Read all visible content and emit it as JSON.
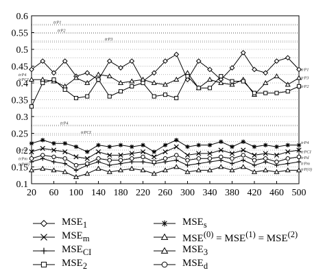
{
  "chart_data": {
    "type": "line",
    "xlim": [
      20,
      500
    ],
    "ylim": [
      0.1,
      0.6
    ],
    "x_ticks": [
      "20",
      "60",
      "100",
      "140",
      "180",
      "220",
      "260",
      "300",
      "340",
      "380",
      "420",
      "460",
      "500"
    ],
    "y_ticks": [
      "0.1",
      "0.15",
      "0.2",
      "0.25",
      "0.3",
      "0.35",
      "0.4",
      "0.45",
      "0.5",
      "0.55",
      "0.6"
    ],
    "x": [
      20,
      40,
      60,
      80,
      100,
      120,
      140,
      160,
      180,
      200,
      220,
      240,
      260,
      280,
      300,
      320,
      340,
      360,
      380,
      400,
      420,
      440,
      460,
      480,
      500
    ],
    "grid": "horizontal dotted",
    "reference_lines": [
      {
        "label": "trP1",
        "y": 0.572
      },
      {
        "label": "trP2",
        "y": 0.548
      },
      {
        "label": "trP3",
        "y": 0.522
      },
      {
        "label": "trP4",
        "y": 0.272
      },
      {
        "label": "trPCI",
        "y": 0.245
      }
    ],
    "left_labels": [
      "trP4",
      "trPCI",
      "trP4",
      "trPm",
      "trP(0)"
    ],
    "right_labels": [
      "trP1",
      "trP3",
      "trP2",
      "trP4",
      "trPCI",
      "trPd",
      "trPm",
      "trP(0)"
    ],
    "series": [
      {
        "name": "MSE1",
        "marker": "diamond",
        "values": [
          0.44,
          0.465,
          0.43,
          0.465,
          0.42,
          0.43,
          0.41,
          0.465,
          0.445,
          0.465,
          0.405,
          0.43,
          0.465,
          0.485,
          0.41,
          0.465,
          0.44,
          0.41,
          0.445,
          0.49,
          0.44,
          0.43,
          0.465,
          0.475,
          0.44
        ]
      },
      {
        "name": "MSEs",
        "marker": "asterisk",
        "values": [
          0.22,
          0.23,
          0.22,
          0.22,
          0.21,
          0.195,
          0.215,
          0.21,
          0.215,
          0.21,
          0.215,
          0.195,
          0.215,
          0.23,
          0.21,
          0.215,
          0.215,
          0.225,
          0.21,
          0.225,
          0.21,
          0.215,
          0.21,
          0.215,
          0.215
        ]
      },
      {
        "name": "MSEm",
        "marker": "cross",
        "values": [
          0.195,
          0.205,
          0.2,
          0.195,
          0.18,
          0.175,
          0.195,
          0.185,
          0.185,
          0.19,
          0.195,
          0.18,
          0.195,
          0.21,
          0.185,
          0.19,
          0.19,
          0.2,
          0.19,
          0.2,
          0.185,
          0.19,
          0.185,
          0.195,
          0.2
        ]
      },
      {
        "name": "MSE(0) = MSE(1) = MSE(2)",
        "marker": "triangle",
        "values": [
          0.41,
          0.41,
          0.405,
          0.39,
          0.415,
          0.4,
          0.425,
          0.42,
          0.4,
          0.405,
          0.41,
          0.4,
          0.395,
          0.41,
          0.43,
          0.385,
          0.41,
          0.4,
          0.395,
          0.41,
          0.365,
          0.4,
          0.42,
          0.395,
          0.415
        ]
      },
      {
        "name": "MSECI",
        "marker": "plus",
        "values": [
          0.165,
          0.175,
          0.165,
          0.16,
          0.14,
          0.155,
          0.165,
          0.155,
          0.16,
          0.165,
          0.165,
          0.16,
          0.165,
          0.17,
          0.155,
          0.16,
          0.165,
          0.17,
          0.16,
          0.17,
          0.155,
          0.165,
          0.155,
          0.16,
          0.165
        ]
      },
      {
        "name": "MSE3",
        "marker": "triangle",
        "values": [
          0.14,
          0.145,
          0.14,
          0.135,
          0.12,
          0.13,
          0.145,
          0.135,
          0.14,
          0.145,
          0.14,
          0.13,
          0.14,
          0.15,
          0.135,
          0.14,
          0.14,
          0.15,
          0.14,
          0.15,
          0.135,
          0.14,
          0.135,
          0.14,
          0.14
        ]
      },
      {
        "name": "MSE2",
        "marker": "square",
        "values": [
          0.33,
          0.4,
          0.41,
          0.38,
          0.355,
          0.36,
          0.41,
          0.36,
          0.375,
          0.39,
          0.4,
          0.36,
          0.365,
          0.355,
          0.42,
          0.385,
          0.385,
          0.42,
          0.405,
          0.405,
          0.37,
          0.37,
          0.37,
          0.375,
          0.39
        ]
      },
      {
        "name": "MSEd",
        "marker": "circle",
        "values": [
          0.175,
          0.185,
          0.18,
          0.175,
          0.155,
          0.16,
          0.175,
          0.17,
          0.17,
          0.175,
          0.18,
          0.165,
          0.175,
          0.185,
          0.17,
          0.175,
          0.175,
          0.18,
          0.175,
          0.185,
          0.17,
          0.175,
          0.165,
          0.175,
          0.18
        ]
      }
    ]
  },
  "legend": {
    "items": [
      {
        "id": "mse1",
        "marker": "diamond",
        "main": "MSE",
        "sub": "1",
        "sup": ""
      },
      {
        "id": "mses",
        "marker": "asterisk",
        "main": "MSE",
        "sub": "s",
        "sup": ""
      },
      {
        "id": "msem",
        "marker": "cross",
        "main": "MSE",
        "sub": "m",
        "sup": ""
      },
      {
        "id": "mse012",
        "marker": "triangle",
        "main": "MSE",
        "sub": "",
        "sup": "(0)",
        "rest": " = MSE",
        "sup2": "(1)",
        "rest2": " = MSE",
        "sup3": "(2)"
      },
      {
        "id": "mseci",
        "marker": "plus",
        "main": "MSE",
        "sub": "CI",
        "sup": ""
      },
      {
        "id": "mse3",
        "marker": "triangle",
        "main": "MSE",
        "sub": "3",
        "sup": ""
      },
      {
        "id": "mse2",
        "marker": "square",
        "main": "MSE",
        "sub": "2",
        "sup": ""
      },
      {
        "id": "msed",
        "marker": "circle",
        "main": "MSE",
        "sub": "d",
        "sup": ""
      }
    ]
  }
}
